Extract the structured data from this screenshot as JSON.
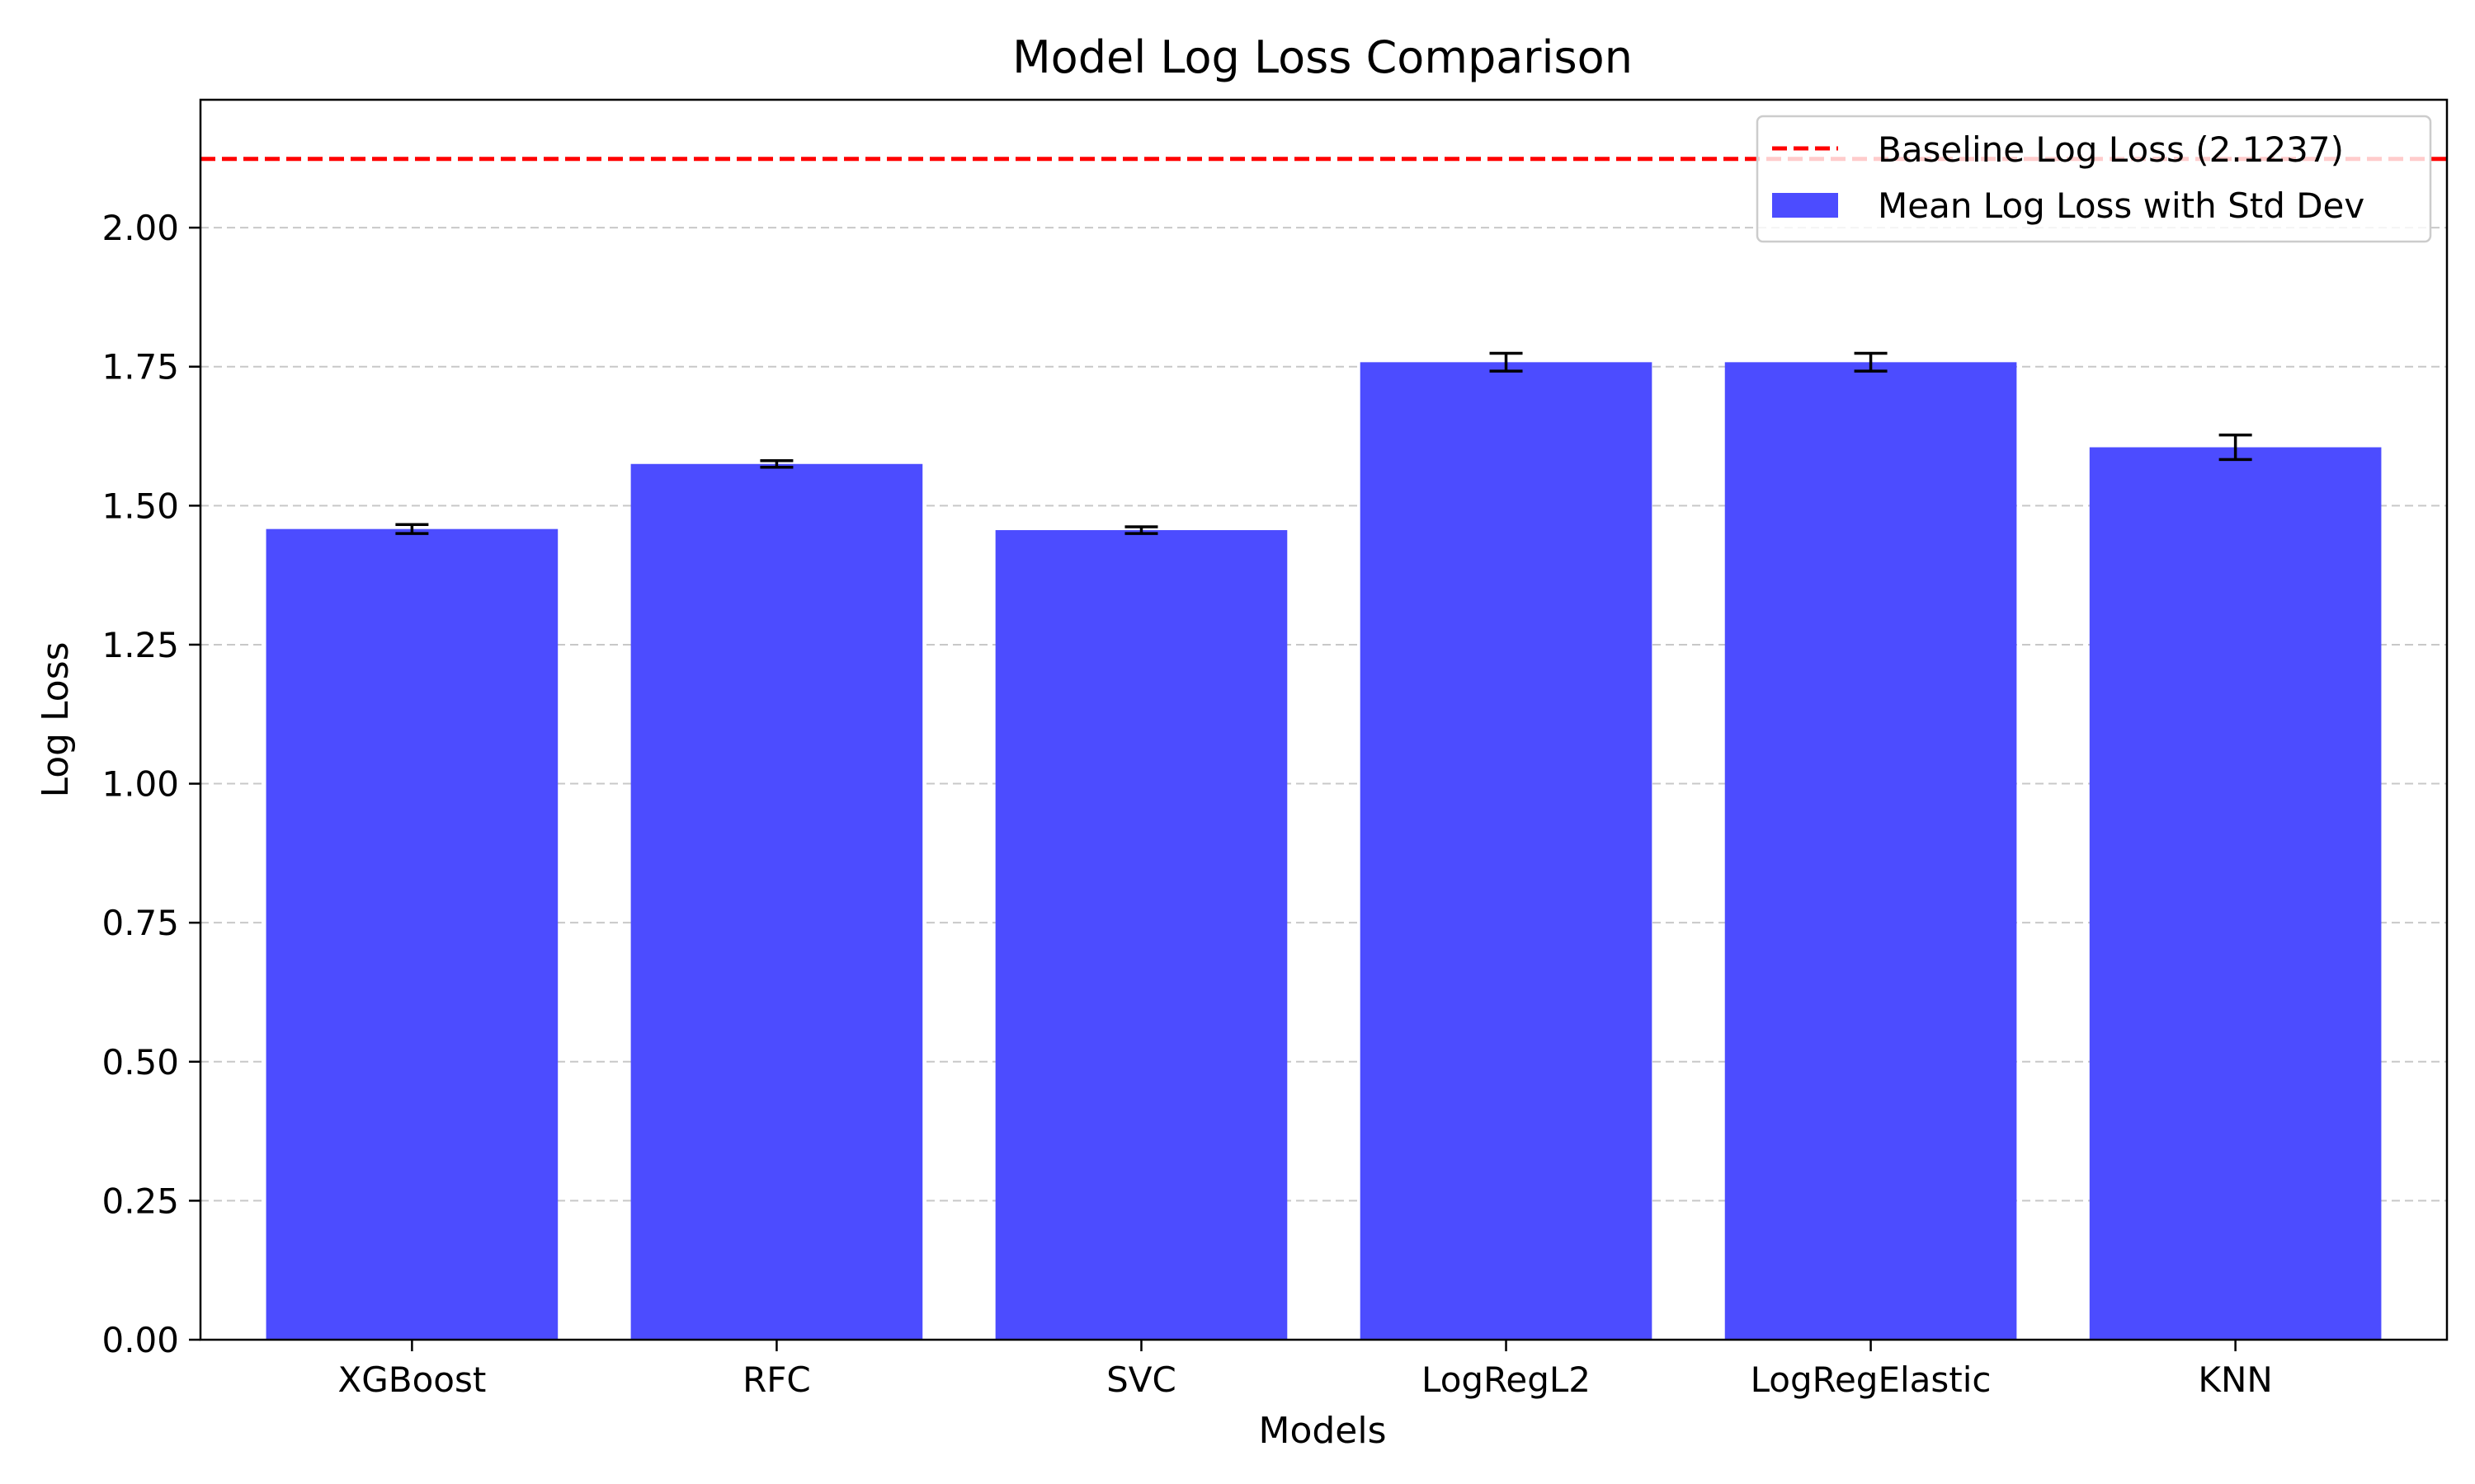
{
  "chart_data": {
    "type": "bar",
    "title": "Model Log Loss Comparison",
    "xlabel": "Models",
    "ylabel": "Log Loss",
    "categories": [
      "XGBoost",
      "RFC",
      "SVC",
      "LogRegL2",
      "LogRegElastic",
      "KNN"
    ],
    "series": [
      {
        "name": "Mean Log Loss with Std Dev",
        "values": [
          1.458,
          1.575,
          1.456,
          1.758,
          1.758,
          1.605
        ],
        "errors": [
          0.008,
          0.006,
          0.006,
          0.016,
          0.016,
          0.022
        ],
        "color": "#4c4cff"
      }
    ],
    "baseline": {
      "label": "Baseline Log Loss (2.1237)",
      "value": 2.1237,
      "color": "#ff0000",
      "style": "dashed"
    },
    "ylim": [
      0,
      2.23
    ],
    "yticks": [
      0.0,
      0.25,
      0.5,
      0.75,
      1.0,
      1.25,
      1.5,
      1.75,
      2.0
    ],
    "grid": "y-dashed",
    "legend_position": "top-right"
  }
}
